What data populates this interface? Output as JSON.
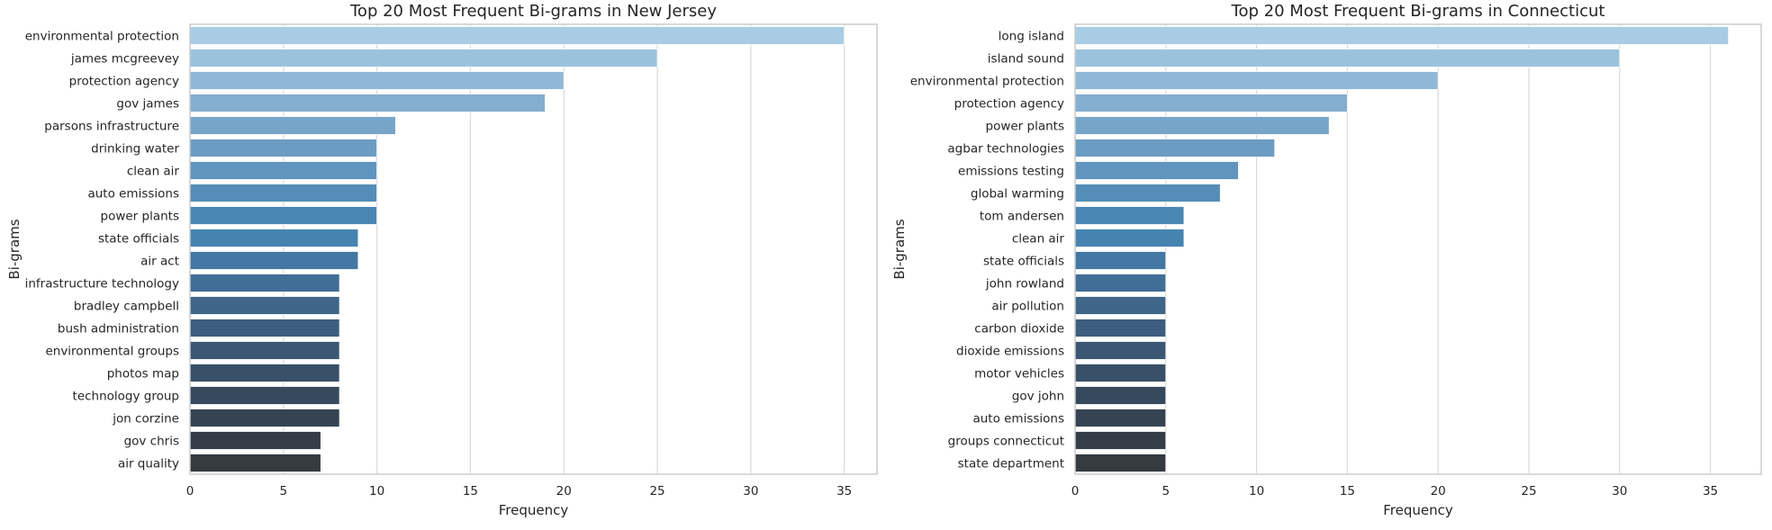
{
  "chart_data": [
    {
      "type": "bar",
      "orientation": "horizontal",
      "title": "Top 20 Most Frequent Bi-grams in New Jersey",
      "xlabel": "Frequency",
      "ylabel": "Bi-grams",
      "xlim": [
        0,
        36.75
      ],
      "xticks": [
        0,
        5,
        10,
        15,
        20,
        25,
        30,
        35
      ],
      "grid": "vertical",
      "palette": "Blues_d",
      "categories": [
        "environmental protection",
        "james mcgreevey",
        "protection agency",
        "gov james",
        "parsons infrastructure",
        "drinking water",
        "clean air",
        "auto emissions",
        "power plants",
        "state officials",
        "air act",
        "infrastructure technology",
        "bradley campbell",
        "bush administration",
        "environmental groups",
        "photos map",
        "technology group",
        "jon corzine",
        "gov chris",
        "air quality"
      ],
      "values": [
        35,
        25,
        20,
        19,
        11,
        10,
        10,
        10,
        10,
        9,
        9,
        8,
        8,
        8,
        8,
        8,
        8,
        8,
        7,
        7
      ]
    },
    {
      "type": "bar",
      "orientation": "horizontal",
      "title": "Top 20 Most Frequent Bi-grams in Connecticut",
      "xlabel": "Frequency",
      "ylabel": "Bi-grams",
      "xlim": [
        0,
        37.8
      ],
      "xticks": [
        0,
        5,
        10,
        15,
        20,
        25,
        30,
        35
      ],
      "grid": "vertical",
      "palette": "Blues_d",
      "categories": [
        "long island",
        "island sound",
        "environmental protection",
        "protection agency",
        "power plants",
        "agbar technologies",
        "emissions testing",
        "global warming",
        "tom andersen",
        "clean air",
        "state officials",
        "john rowland",
        "air pollution",
        "carbon dioxide",
        "dioxide emissions",
        "motor vehicles",
        "gov john",
        "auto emissions",
        "groups connecticut",
        "state department"
      ],
      "values": [
        36,
        30,
        20,
        15,
        14,
        11,
        9,
        8,
        6,
        6,
        5,
        5,
        5,
        5,
        5,
        5,
        5,
        5,
        5,
        5
      ]
    }
  ],
  "colors": {
    "bar_gradient": [
      "#a8cce3",
      "#9bc2dc",
      "#8fb8d6",
      "#83aed0",
      "#77a5ca",
      "#6b9dc4",
      "#5f95be",
      "#548db8",
      "#4b87b5",
      "#4683b1",
      "#4478a4",
      "#416e96",
      "#3f6689",
      "#3d5e7e",
      "#3b5773",
      "#395068",
      "#37495d",
      "#364352",
      "#353e48",
      "#353b40"
    ],
    "grid": "#d9d9d9",
    "spine": "#cccccc",
    "text": "#262626"
  }
}
